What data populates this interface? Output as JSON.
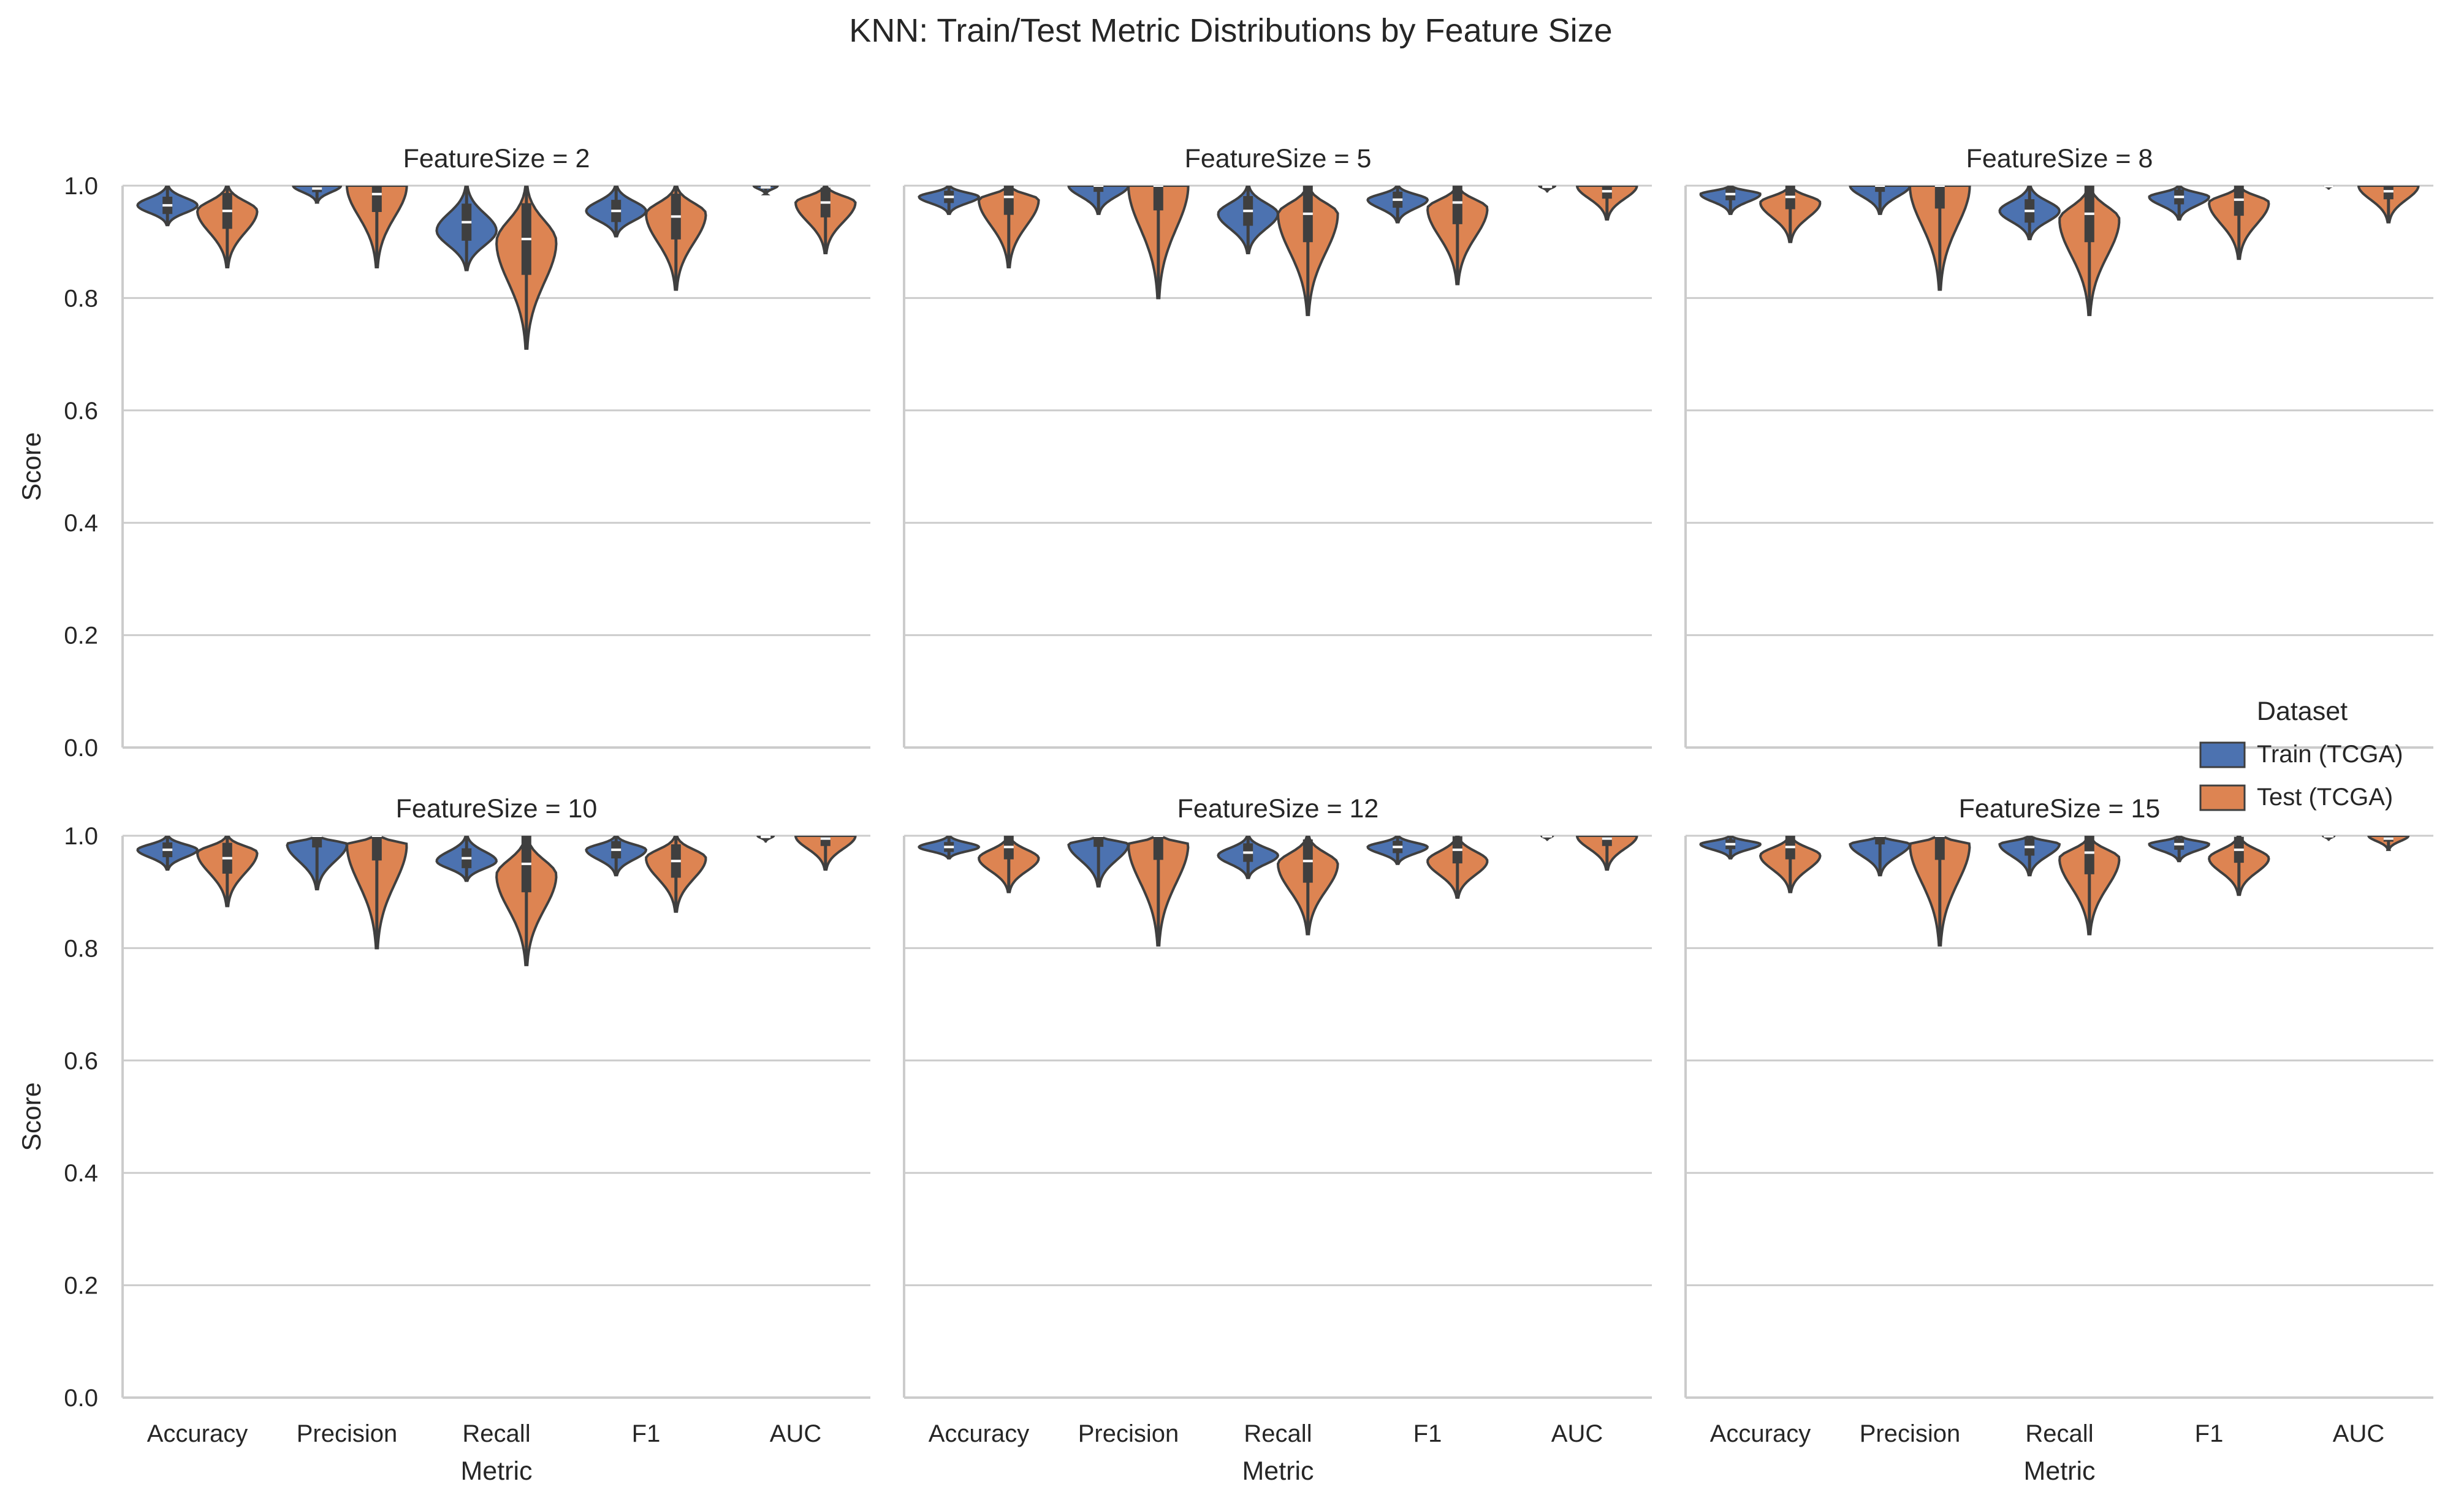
{
  "chart_data": {
    "type": "violin",
    "title": "KNN: Train/Test Metric Distributions by Feature Size",
    "xlabel": "Metric",
    "ylabel": "Score",
    "ylim": [
      0,
      1.0
    ],
    "yticks": [
      "0.0",
      "0.2",
      "0.4",
      "0.6",
      "0.8",
      "1.0"
    ],
    "categories": [
      "Accuracy",
      "Precision",
      "Recall",
      "F1",
      "AUC"
    ],
    "grid": "horizontal",
    "legend": {
      "title": "Dataset",
      "placement": "right",
      "entries": [
        {
          "label": "Train (TCGA)",
          "color": "#4c72b0"
        },
        {
          "label": "Test (TCGA)",
          "color": "#dd8452"
        }
      ]
    },
    "facets": [
      {
        "title": "FeatureSize = 2",
        "series": [
          {
            "name": "Train (TCGA)",
            "stats": [
              {
                "metric": "Accuracy",
                "min": 0.93,
                "max": 1.0,
                "median": 0.965,
                "widest": 0.965
              },
              {
                "metric": "Precision",
                "min": 0.97,
                "max": 1.0,
                "median": 0.995,
                "widest": 1.0
              },
              {
                "metric": "Recall",
                "min": 0.85,
                "max": 1.0,
                "median": 0.935,
                "widest": 0.92
              },
              {
                "metric": "F1",
                "min": 0.91,
                "max": 1.0,
                "median": 0.955,
                "widest": 0.955
              },
              {
                "metric": "AUC",
                "min": 0.985,
                "max": 1.0,
                "median": 0.997,
                "widest": 1.0
              }
            ]
          },
          {
            "name": "Test (TCGA)",
            "stats": [
              {
                "metric": "Accuracy",
                "min": 0.855,
                "max": 1.0,
                "median": 0.955,
                "widest": 0.955
              },
              {
                "metric": "Precision",
                "min": 0.855,
                "max": 1.0,
                "median": 0.985,
                "widest": 1.0
              },
              {
                "metric": "Recall",
                "min": 0.71,
                "max": 1.0,
                "median": 0.905,
                "widest": 0.9
              },
              {
                "metric": "F1",
                "min": 0.815,
                "max": 1.0,
                "median": 0.945,
                "widest": 0.95
              },
              {
                "metric": "AUC",
                "min": 0.88,
                "max": 1.0,
                "median": 0.97,
                "widest": 0.97
              }
            ]
          }
        ]
      },
      {
        "title": "FeatureSize = 5",
        "series": [
          {
            "name": "Train (TCGA)",
            "stats": [
              {
                "metric": "Accuracy",
                "min": 0.95,
                "max": 1.0,
                "median": 0.98,
                "widest": 0.98
              },
              {
                "metric": "Precision",
                "min": 0.95,
                "max": 1.0,
                "median": 1.0,
                "widest": 1.0
              },
              {
                "metric": "Recall",
                "min": 0.88,
                "max": 1.0,
                "median": 0.955,
                "widest": 0.95
              },
              {
                "metric": "F1",
                "min": 0.935,
                "max": 1.0,
                "median": 0.975,
                "widest": 0.975
              },
              {
                "metric": "AUC",
                "min": 0.99,
                "max": 1.0,
                "median": 0.998,
                "widest": 1.0
              }
            ]
          },
          {
            "name": "Test (TCGA)",
            "stats": [
              {
                "metric": "Accuracy",
                "min": 0.855,
                "max": 1.0,
                "median": 0.98,
                "widest": 0.975
              },
              {
                "metric": "Precision",
                "min": 0.8,
                "max": 1.0,
                "median": 1.0,
                "widest": 1.0
              },
              {
                "metric": "Recall",
                "min": 0.77,
                "max": 1.0,
                "median": 0.95,
                "widest": 0.95
              },
              {
                "metric": "F1",
                "min": 0.825,
                "max": 1.0,
                "median": 0.97,
                "widest": 0.96
              },
              {
                "metric": "AUC",
                "min": 0.94,
                "max": 1.0,
                "median": 0.99,
                "widest": 1.0
              }
            ]
          }
        ]
      },
      {
        "title": "FeatureSize = 8",
        "series": [
          {
            "name": "Train (TCGA)",
            "stats": [
              {
                "metric": "Accuracy",
                "min": 0.95,
                "max": 1.0,
                "median": 0.985,
                "widest": 0.985
              },
              {
                "metric": "Precision",
                "min": 0.95,
                "max": 1.0,
                "median": 1.0,
                "widest": 1.0
              },
              {
                "metric": "Recall",
                "min": 0.905,
                "max": 1.0,
                "median": 0.955,
                "widest": 0.955
              },
              {
                "metric": "F1",
                "min": 0.94,
                "max": 1.0,
                "median": 0.98,
                "widest": 0.98
              },
              {
                "metric": "AUC",
                "min": 0.995,
                "max": 1.0,
                "median": 0.999,
                "widest": 1.0
              }
            ]
          },
          {
            "name": "Test (TCGA)",
            "stats": [
              {
                "metric": "Accuracy",
                "min": 0.9,
                "max": 1.0,
                "median": 0.98,
                "widest": 0.97
              },
              {
                "metric": "Precision",
                "min": 0.815,
                "max": 1.0,
                "median": 1.0,
                "widest": 1.0
              },
              {
                "metric": "Recall",
                "min": 0.77,
                "max": 1.0,
                "median": 0.95,
                "widest": 0.94
              },
              {
                "metric": "F1",
                "min": 0.87,
                "max": 1.0,
                "median": 0.975,
                "widest": 0.97
              },
              {
                "metric": "AUC",
                "min": 0.935,
                "max": 1.0,
                "median": 0.99,
                "widest": 1.0
              }
            ]
          }
        ]
      },
      {
        "title": "FeatureSize = 10",
        "series": [
          {
            "name": "Train (TCGA)",
            "stats": [
              {
                "metric": "Accuracy",
                "min": 0.94,
                "max": 1.0,
                "median": 0.975,
                "widest": 0.975
              },
              {
                "metric": "Precision",
                "min": 0.905,
                "max": 1.0,
                "median": 1.0,
                "widest": 0.985
              },
              {
                "metric": "Recall",
                "min": 0.92,
                "max": 1.0,
                "median": 0.96,
                "widest": 0.955
              },
              {
                "metric": "F1",
                "min": 0.93,
                "max": 1.0,
                "median": 0.975,
                "widest": 0.975
              },
              {
                "metric": "AUC",
                "min": 0.99,
                "max": 1.0,
                "median": 0.998,
                "widest": 1.0
              }
            ]
          },
          {
            "name": "Test (TCGA)",
            "stats": [
              {
                "metric": "Accuracy",
                "min": 0.875,
                "max": 1.0,
                "median": 0.96,
                "widest": 0.97
              },
              {
                "metric": "Precision",
                "min": 0.8,
                "max": 1.0,
                "median": 1.0,
                "widest": 0.985
              },
              {
                "metric": "Recall",
                "min": 0.77,
                "max": 1.0,
                "median": 0.95,
                "widest": 0.93
              },
              {
                "metric": "F1",
                "min": 0.865,
                "max": 1.0,
                "median": 0.955,
                "widest": 0.96
              },
              {
                "metric": "AUC",
                "min": 0.94,
                "max": 1.0,
                "median": 0.995,
                "widest": 1.0
              }
            ]
          }
        ]
      },
      {
        "title": "FeatureSize = 12",
        "series": [
          {
            "name": "Train (TCGA)",
            "stats": [
              {
                "metric": "Accuracy",
                "min": 0.96,
                "max": 1.0,
                "median": 0.98,
                "widest": 0.98
              },
              {
                "metric": "Precision",
                "min": 0.91,
                "max": 1.0,
                "median": 1.0,
                "widest": 0.985
              },
              {
                "metric": "Recall",
                "min": 0.925,
                "max": 1.0,
                "median": 0.97,
                "widest": 0.965
              },
              {
                "metric": "F1",
                "min": 0.95,
                "max": 1.0,
                "median": 0.98,
                "widest": 0.98
              },
              {
                "metric": "AUC",
                "min": 0.993,
                "max": 1.0,
                "median": 0.999,
                "widest": 1.0
              }
            ]
          },
          {
            "name": "Test (TCGA)",
            "stats": [
              {
                "metric": "Accuracy",
                "min": 0.9,
                "max": 1.0,
                "median": 0.98,
                "widest": 0.96
              },
              {
                "metric": "Precision",
                "min": 0.805,
                "max": 1.0,
                "median": 1.0,
                "widest": 0.985
              },
              {
                "metric": "Recall",
                "min": 0.825,
                "max": 1.0,
                "median": 0.955,
                "widest": 0.95
              },
              {
                "metric": "F1",
                "min": 0.89,
                "max": 1.0,
                "median": 0.975,
                "widest": 0.955
              },
              {
                "metric": "AUC",
                "min": 0.94,
                "max": 1.0,
                "median": 0.995,
                "widest": 1.0
              }
            ]
          }
        ]
      },
      {
        "title": "FeatureSize = 15",
        "series": [
          {
            "name": "Train (TCGA)",
            "stats": [
              {
                "metric": "Accuracy",
                "min": 0.96,
                "max": 1.0,
                "median": 0.985,
                "widest": 0.985
              },
              {
                "metric": "Precision",
                "min": 0.93,
                "max": 1.0,
                "median": 1.0,
                "widest": 0.985
              },
              {
                "metric": "Recall",
                "min": 0.93,
                "max": 1.0,
                "median": 0.98,
                "widest": 0.985
              },
              {
                "metric": "F1",
                "min": 0.955,
                "max": 1.0,
                "median": 0.985,
                "widest": 0.985
              },
              {
                "metric": "AUC",
                "min": 0.993,
                "max": 1.0,
                "median": 0.999,
                "widest": 1.0
              }
            ]
          },
          {
            "name": "Test (TCGA)",
            "stats": [
              {
                "metric": "Accuracy",
                "min": 0.9,
                "max": 1.0,
                "median": 0.98,
                "widest": 0.965
              },
              {
                "metric": "Precision",
                "min": 0.805,
                "max": 1.0,
                "median": 1.0,
                "widest": 0.985
              },
              {
                "metric": "Recall",
                "min": 0.825,
                "max": 1.0,
                "median": 0.97,
                "widest": 0.96
              },
              {
                "metric": "F1",
                "min": 0.895,
                "max": 1.0,
                "median": 0.975,
                "widest": 0.96
              },
              {
                "metric": "AUC",
                "min": 0.975,
                "max": 1.0,
                "median": 0.995,
                "widest": 1.0
              }
            ]
          }
        ]
      }
    ]
  }
}
